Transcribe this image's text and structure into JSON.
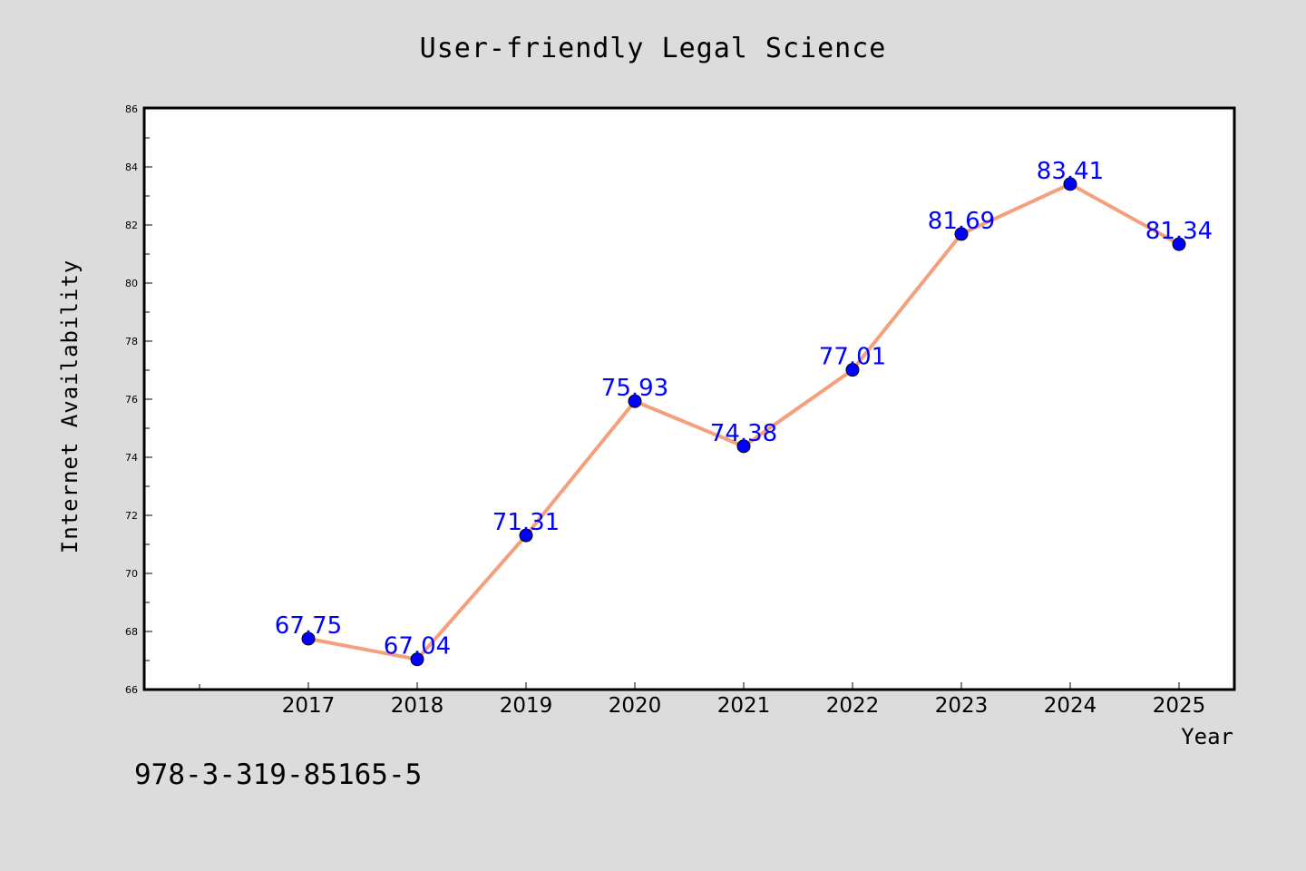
{
  "chart_data": {
    "type": "line",
    "title": "User-friendly Legal Science",
    "xlabel": "Year",
    "ylabel": "Internet Availability",
    "categories": [
      "2017",
      "2018",
      "2019",
      "2020",
      "2021",
      "2022",
      "2023",
      "2024",
      "2025"
    ],
    "series": [
      {
        "values": [
          67.75,
          67.04,
          71.31,
          75.93,
          74.38,
          77.01,
          81.69,
          83.41,
          81.34
        ],
        "line_color": "#f4a07c",
        "marker_color": "#0000ff",
        "label_color": "#0000ff"
      }
    ],
    "ylim": [
      66,
      86
    ],
    "yticks": [
      "66",
      "68",
      "70",
      "72",
      "74",
      "76",
      "78",
      "80",
      "82",
      "84",
      "86"
    ],
    "grid": false,
    "legend": "none"
  },
  "annotation": "978-3-319-85165-5",
  "colors": {
    "background": "#dcdcdc",
    "plot_background": "#ffffff",
    "axis": "#000000"
  }
}
